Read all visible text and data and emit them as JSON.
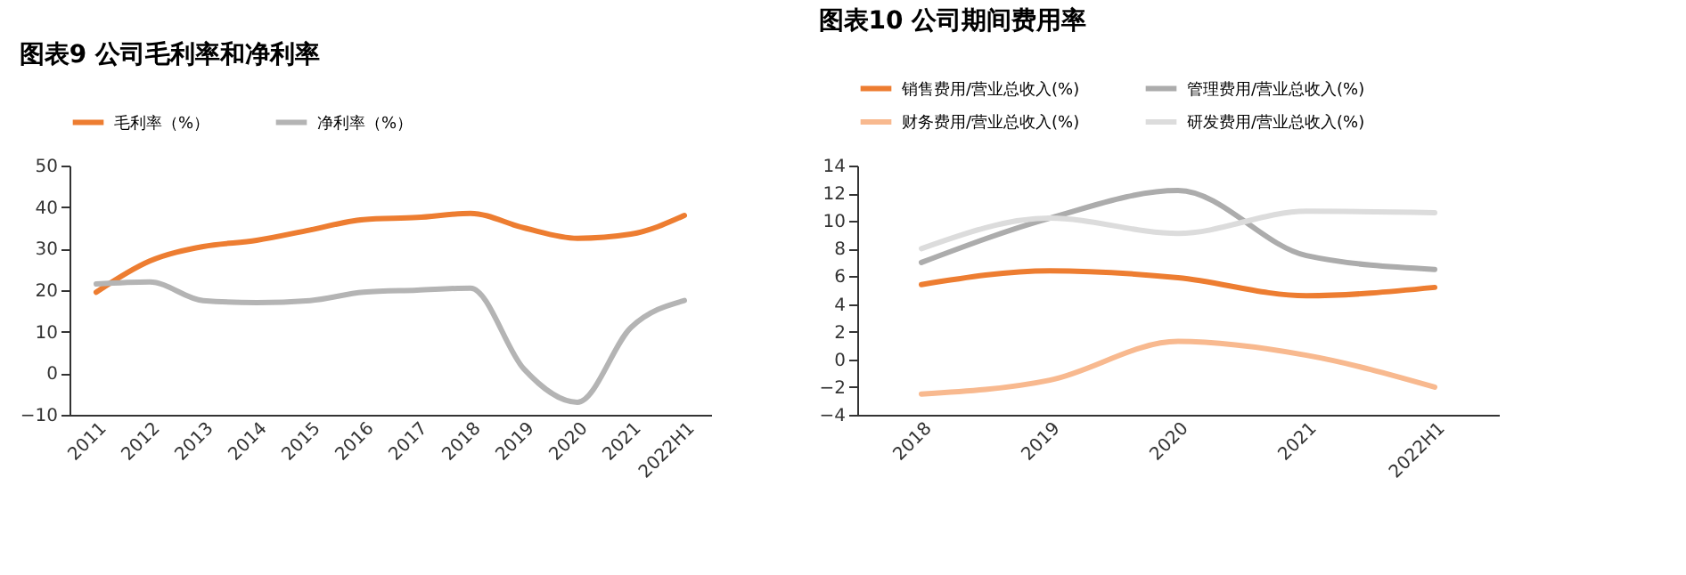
{
  "chart_data": [
    {
      "type": "line",
      "title": "图表9    公司毛利率和净利率",
      "categories": [
        "2011",
        "2012",
        "2013",
        "2014",
        "2015",
        "2016",
        "2017",
        "2018",
        "2019",
        "2020",
        "2021",
        "2022H1"
      ],
      "ylim": [
        -10,
        50
      ],
      "yticks": [
        -10,
        0,
        10,
        20,
        30,
        40,
        50
      ],
      "grid": false,
      "legend": "top",
      "line_style": "solid",
      "marker": "none",
      "series": [
        {
          "name": "毛利率（%）",
          "color": "#ed7d31",
          "values": [
            19.5,
            27,
            30.5,
            32,
            34.5,
            37,
            37.5,
            38.5,
            35,
            32.5,
            33.5,
            38
          ]
        },
        {
          "name": "净利率（%）",
          "color": "#b4b4b4",
          "values": [
            21.5,
            22,
            17.5,
            17,
            17.5,
            19.5,
            20,
            20.5,
            1,
            -7,
            11,
            17.5
          ]
        }
      ]
    },
    {
      "type": "line",
      "title": "图表10    公司期间费用率",
      "categories": [
        "2018",
        "2019",
        "2020",
        "2021",
        "2022H1"
      ],
      "ylim": [
        -4,
        14
      ],
      "yticks": [
        -4,
        -2,
        0,
        2,
        4,
        6,
        8,
        10,
        12,
        14
      ],
      "grid": false,
      "legend": "top",
      "line_style": "solid",
      "marker": "none",
      "series": [
        {
          "name": "销售费用/营业总收入(%)",
          "color": "#ed7d31",
          "values": [
            5.4,
            6.4,
            5.9,
            4.6,
            5.2
          ]
        },
        {
          "name": "管理费用/营业总收入(%)",
          "color": "#acacac",
          "values": [
            7.0,
            10.2,
            12.2,
            7.5,
            6.5
          ]
        },
        {
          "name": "财务费用/营业总收入(%)",
          "color": "#f8b98f",
          "values": [
            -2.5,
            -1.5,
            1.3,
            0.3,
            -2.0
          ]
        },
        {
          "name": "研发费用/营业总收入(%)",
          "color": "#dcdcdc",
          "values": [
            8.0,
            10.2,
            9.1,
            10.7,
            10.6
          ]
        }
      ]
    }
  ]
}
